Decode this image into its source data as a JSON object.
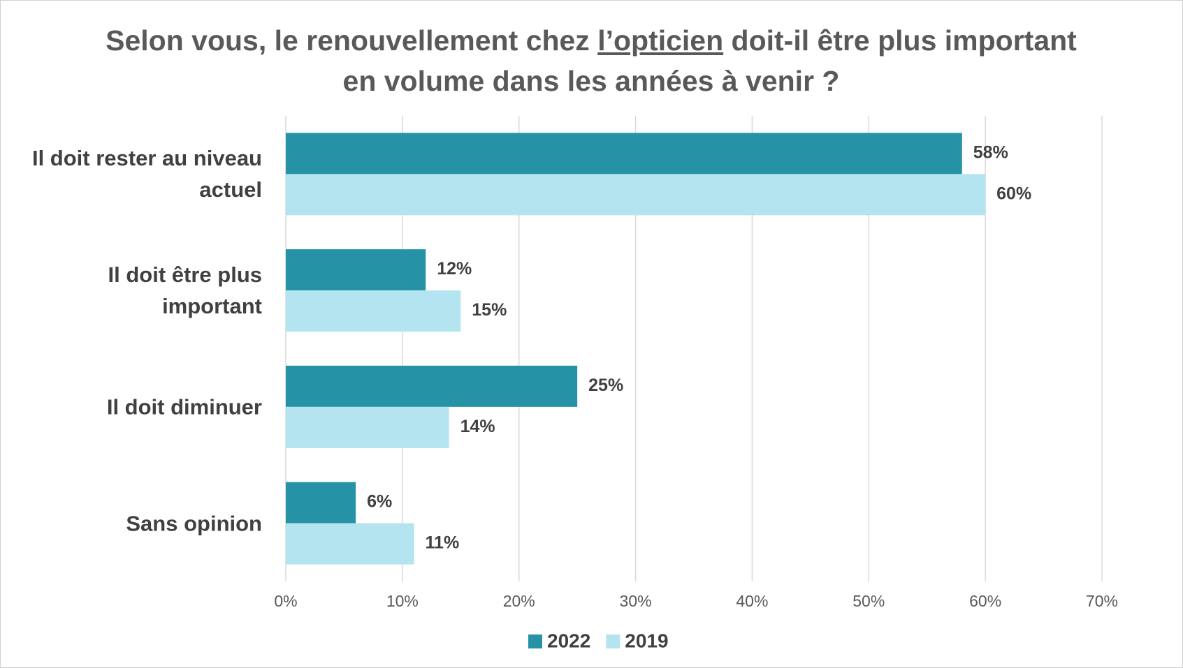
{
  "chart_data": {
    "type": "bar",
    "orientation": "horizontal",
    "title": [
      "Selon vous, le renouvellement chez ",
      "l’opticien",
      " doit-il être plus important en volume dans les années à venir ?"
    ],
    "categories": [
      "Il doit rester au niveau actuel",
      "Il doit être plus important",
      "Il doit diminuer",
      "Sans opinion"
    ],
    "series": [
      {
        "name": "2022",
        "color": "#2692a6",
        "values": [
          58,
          12,
          25,
          6
        ],
        "value_labels": [
          "58%",
          "12%",
          "25%",
          "6%"
        ]
      },
      {
        "name": "2019",
        "color": "#b3e4ef",
        "values": [
          60,
          15,
          14,
          11
        ],
        "value_labels": [
          "60%",
          "15%",
          "14%",
          "11%"
        ]
      }
    ],
    "xlim": [
      0,
      70
    ],
    "xticks": [
      {
        "value": 0,
        "label": "0%"
      },
      {
        "value": 10,
        "label": "10%"
      },
      {
        "value": 20,
        "label": "20%"
      },
      {
        "value": 30,
        "label": "30%"
      },
      {
        "value": 40,
        "label": "40%"
      },
      {
        "value": 50,
        "label": "50%"
      },
      {
        "value": 60,
        "label": "60%"
      },
      {
        "value": 70,
        "label": "70%"
      }
    ],
    "grid": true,
    "legend": "bottom"
  }
}
